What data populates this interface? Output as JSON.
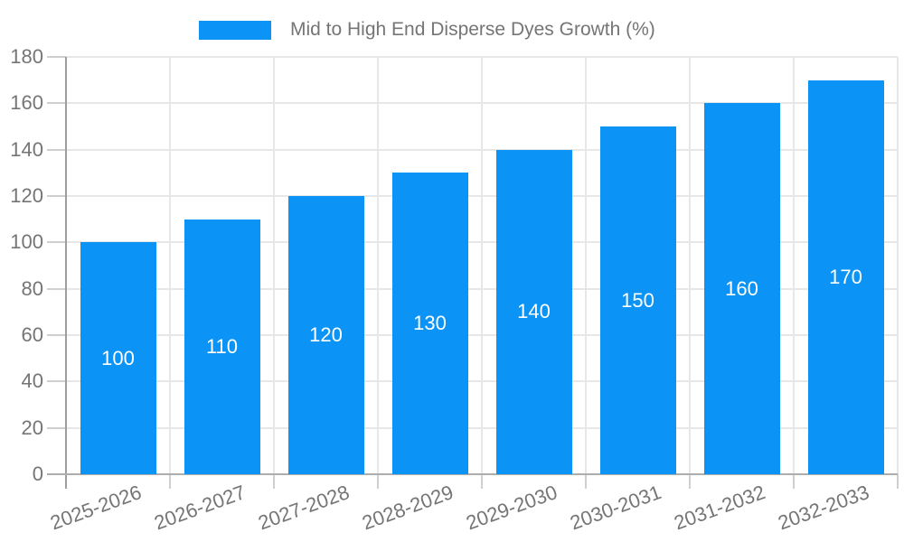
{
  "legend": {
    "label": "Mid to High End Disperse Dyes Growth (%)"
  },
  "colors": {
    "bar": "#0b93f6",
    "bar_label_text": "#ffffff",
    "axis_text": "#757575",
    "gridline": "#e7e7e7",
    "tick": "#cfcfcf",
    "y_axis_line": "#9e9e9e",
    "x_axis_line": "#adadad",
    "background": "#ffffff"
  },
  "chart_data": {
    "type": "bar",
    "title": "Mid to High End Disperse Dyes Growth (%)",
    "categories": [
      "2025-2026",
      "2026-2027",
      "2027-2028",
      "2028-2029",
      "2029-2030",
      "2030-2031",
      "2031-2032",
      "2032-2033"
    ],
    "values": [
      100,
      110,
      120,
      130,
      140,
      150,
      160,
      170
    ],
    "bar_labels": [
      100,
      110,
      120,
      130,
      140,
      150,
      160,
      170
    ],
    "xlabel": "",
    "ylabel": "",
    "ylim": [
      0,
      180
    ],
    "ytick_step": 20,
    "y_ticks": [
      0,
      20,
      40,
      60,
      80,
      100,
      120,
      140,
      160,
      180
    ],
    "grid": true,
    "legend_position": "top",
    "x_label_rotation_deg": -20
  }
}
